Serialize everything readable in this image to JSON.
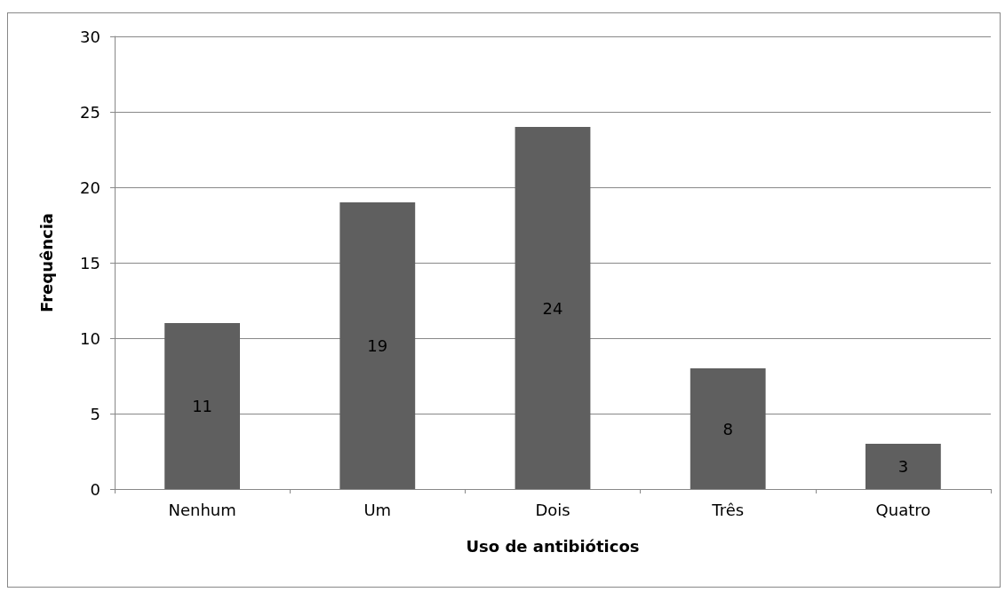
{
  "chart_data": {
    "type": "bar",
    "xlabel": "Uso de antibióticos",
    "ylabel": "Frequência",
    "categories": [
      "Nenhum",
      "Um",
      "Dois",
      "Três",
      "Quatro"
    ],
    "values": [
      11,
      19,
      24,
      8,
      3
    ],
    "color": "#5f5f5f",
    "ylim": [
      0,
      30
    ],
    "yticks": [
      0,
      5,
      10,
      15,
      20,
      25,
      30
    ],
    "grid": "y",
    "data_labels": true
  }
}
